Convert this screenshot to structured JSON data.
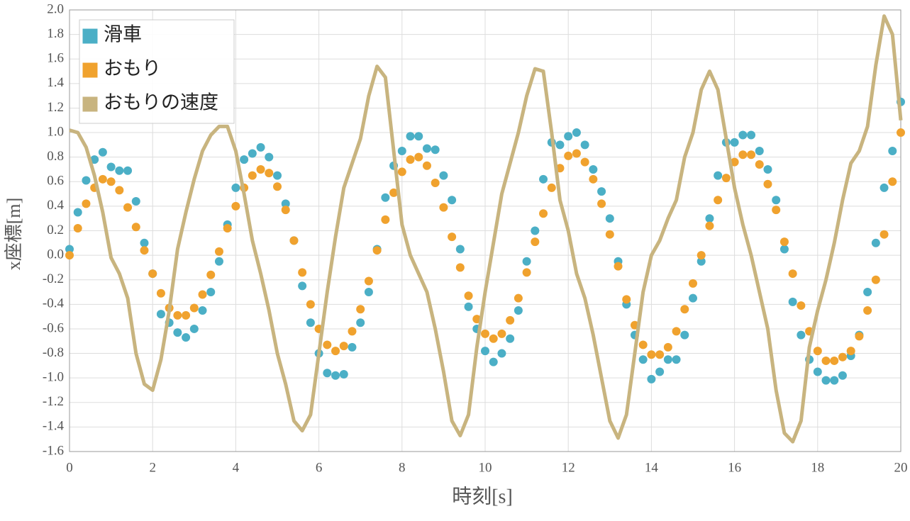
{
  "chart_data": {
    "type": "scatter",
    "x_label": "時刻[s]",
    "y_label": "x座標[m]",
    "x": [
      0,
      0.2,
      0.4,
      0.6,
      0.8,
      1,
      1.2,
      1.4,
      1.6,
      1.8,
      2,
      2.2,
      2.4,
      2.6,
      2.8,
      3,
      3.2,
      3.4,
      3.6,
      3.8,
      4,
      4.2,
      4.4,
      4.6,
      4.8,
      5,
      5.2,
      5.4,
      5.6,
      5.8,
      6,
      6.2,
      6.4,
      6.6,
      6.8,
      7,
      7.2,
      7.4,
      7.6,
      7.8,
      8,
      8.2,
      8.4,
      8.6,
      8.8,
      9,
      9.2,
      9.4,
      9.6,
      9.8,
      10,
      10.2,
      10.4,
      10.6,
      10.8,
      11,
      11.2,
      11.4,
      11.6,
      11.8,
      12,
      12.2,
      12.4,
      12.6,
      12.8,
      13,
      13.2,
      13.4,
      13.6,
      13.8,
      14,
      14.2,
      14.4,
      14.6,
      14.8,
      15,
      15.2,
      15.4,
      15.6,
      15.8,
      16,
      16.2,
      16.4,
      16.6,
      16.8,
      17,
      17.2,
      17.4,
      17.6,
      17.8,
      18,
      18.2,
      18.4,
      18.6,
      18.8,
      19,
      19.2,
      19.4,
      19.6,
      19.8,
      20
    ],
    "series": [
      {
        "name": "滑車",
        "type": "scatter",
        "color": "#4bafc6",
        "values": [
          0.05,
          0.35,
          0.61,
          0.78,
          0.84,
          0.72,
          0.69,
          0.69,
          0.44,
          0.1,
          -0.15,
          -0.48,
          -0.55,
          -0.63,
          -0.67,
          -0.6,
          -0.45,
          -0.3,
          -0.05,
          0.25,
          0.55,
          0.78,
          0.83,
          0.88,
          0.8,
          0.65,
          0.42,
          0.12,
          -0.25,
          -0.55,
          -0.8,
          -0.96,
          -0.98,
          -0.97,
          -0.75,
          -0.55,
          -0.3,
          0.05,
          0.47,
          0.73,
          0.85,
          0.97,
          0.97,
          0.87,
          0.86,
          0.65,
          0.45,
          0.05,
          -0.42,
          -0.6,
          -0.78,
          -0.87,
          -0.8,
          -0.68,
          -0.45,
          -0.05,
          0.2,
          0.62,
          0.92,
          0.9,
          0.97,
          1.0,
          0.9,
          0.7,
          0.52,
          0.3,
          -0.05,
          -0.4,
          -0.65,
          -0.85,
          -1.01,
          -0.95,
          -0.85,
          -0.85,
          -0.65,
          -0.35,
          -0.05,
          0.3,
          0.65,
          0.92,
          0.92,
          0.98,
          0.98,
          0.85,
          0.7,
          0.45,
          0.05,
          -0.38,
          -0.65,
          -0.85,
          -0.95,
          -1.02,
          -1.02,
          -0.98,
          -0.82,
          -0.65,
          -0.3,
          0.1,
          0.55,
          0.85,
          1.25
        ]
      },
      {
        "name": "おもり",
        "type": "scatter",
        "color": "#f0a22e",
        "values": [
          0,
          0.22,
          0.42,
          0.55,
          0.62,
          0.6,
          0.53,
          0.39,
          0.23,
          0.04,
          -0.15,
          -0.31,
          -0.43,
          -0.49,
          -0.49,
          -0.43,
          -0.32,
          -0.16,
          0.03,
          0.22,
          0.4,
          0.55,
          0.65,
          0.7,
          0.67,
          0.56,
          0.37,
          0.12,
          -0.14,
          -0.4,
          -0.6,
          -0.73,
          -0.78,
          -0.74,
          -0.62,
          -0.44,
          -0.21,
          0.04,
          0.29,
          0.51,
          0.68,
          0.78,
          0.8,
          0.73,
          0.59,
          0.39,
          0.15,
          -0.1,
          -0.33,
          -0.52,
          -0.64,
          -0.68,
          -0.64,
          -0.53,
          -0.35,
          -0.14,
          0.11,
          0.34,
          0.55,
          0.71,
          0.81,
          0.83,
          0.76,
          0.62,
          0.42,
          0.17,
          -0.09,
          -0.36,
          -0.57,
          -0.73,
          -0.81,
          -0.81,
          -0.75,
          -0.62,
          -0.44,
          -0.23,
          0,
          0.24,
          0.45,
          0.63,
          0.76,
          0.82,
          0.82,
          0.74,
          0.58,
          0.37,
          0.11,
          -0.15,
          -0.41,
          -0.62,
          -0.78,
          -0.86,
          -0.86,
          -0.83,
          -0.78,
          -0.66,
          -0.45,
          -0.2,
          0.17,
          0.6,
          1.0
        ]
      },
      {
        "name": "おもりの速度",
        "type": "line",
        "color": "#c8b47f",
        "values": [
          1.02,
          1.0,
          0.88,
          0.65,
          0.35,
          -0.02,
          -0.15,
          -0.35,
          -0.8,
          -1.05,
          -1.1,
          -0.85,
          -0.45,
          0.05,
          0.35,
          0.62,
          0.85,
          0.98,
          1.05,
          1.05,
          0.85,
          0.5,
          0.12,
          -0.15,
          -0.45,
          -0.8,
          -1.05,
          -1.35,
          -1.43,
          -1.3,
          -0.8,
          -0.3,
          0.15,
          0.55,
          0.75,
          0.95,
          1.3,
          1.54,
          1.45,
          0.85,
          0.25,
          0,
          -0.15,
          -0.3,
          -0.6,
          -0.95,
          -1.35,
          -1.47,
          -1.3,
          -0.75,
          -0.3,
          0.1,
          0.5,
          0.75,
          1.0,
          1.3,
          1.52,
          1.5,
          1.0,
          0.45,
          0.2,
          -0.15,
          -0.35,
          -0.65,
          -1.0,
          -1.35,
          -1.49,
          -1.3,
          -0.8,
          -0.3,
          0,
          0.12,
          0.3,
          0.45,
          0.8,
          1.0,
          1.35,
          1.5,
          1.35,
          0.95,
          0.55,
          0.25,
          0,
          -0.3,
          -0.6,
          -1.1,
          -1.45,
          -1.52,
          -1.35,
          -0.75,
          -0.45,
          -0.2,
          0.1,
          0.45,
          0.75,
          0.85,
          1.05,
          1.55,
          1.95,
          1.8,
          1.1
        ]
      }
    ],
    "xlim": [
      0,
      20
    ],
    "xticks": [
      0,
      2,
      4,
      6,
      8,
      10,
      12,
      14,
      16,
      18,
      20
    ],
    "ylim": [
      -1.6,
      2.0
    ],
    "yticks": [
      {
        "value": -1.6,
        "label": "-1.6"
      },
      -1.4,
      -1.2,
      {
        "value": -1,
        "label": "-1.0"
      },
      -0.8,
      -0.6,
      -0.4,
      -0.2,
      {
        "value": 0,
        "label": "0.0"
      },
      0.2,
      0.4,
      0.6,
      0.8,
      {
        "value": 1,
        "label": "1.0"
      },
      1.2,
      1.4,
      1.6,
      1.8,
      {
        "value": 2,
        "label": "2.0"
      }
    ],
    "grid": true,
    "legend": "upper left"
  }
}
